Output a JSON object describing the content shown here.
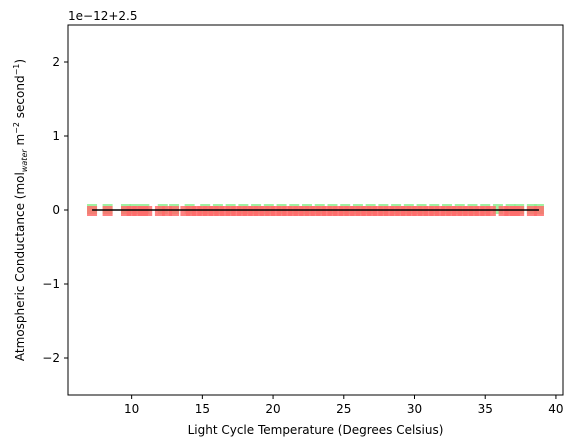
{
  "chart_data": {
    "type": "scatter",
    "offset_text": "1e−12+2.5",
    "xlabel": "Light Cycle Temperature (Degrees Celsius)",
    "ylabel": {
      "prefix": "Atmospheric Conductance (mol",
      "sub": "water",
      "mid": " m",
      "sup1": "−2",
      "mid2": " second",
      "sup2": "−1",
      "suffix": ")"
    },
    "xlim": [
      5.5,
      40.5
    ],
    "ylim": [
      -2.5,
      2.5
    ],
    "xticks": [
      10,
      15,
      20,
      25,
      30,
      35,
      40
    ],
    "yticks": [
      -2,
      -1,
      0,
      1,
      2
    ],
    "ytick_labels": [
      "−2",
      "−1",
      "0",
      "1",
      "2"
    ],
    "grid": false,
    "colors": {
      "series_a": "#ff6b6b",
      "series_b": "#90ee90",
      "fit_line": "#000000"
    },
    "series": [
      {
        "marker": "square",
        "color": "#ff6b6b",
        "x": [
          7.2,
          8.3,
          9.6,
          10.0,
          10.4,
          10.8,
          11.1,
          12.0,
          12.5,
          13.0,
          13.8,
          14.2,
          14.6,
          15.0,
          15.4,
          15.8,
          16.2,
          16.6,
          17.0,
          17.4,
          17.8,
          18.2,
          18.6,
          19.0,
          19.4,
          19.8,
          20.2,
          20.6,
          21.0,
          21.4,
          21.8,
          22.2,
          22.6,
          23.0,
          23.4,
          23.8,
          24.2,
          24.6,
          25.0,
          25.4,
          25.8,
          26.2,
          26.6,
          27.0,
          27.4,
          27.8,
          28.2,
          28.6,
          29.0,
          29.4,
          29.8,
          30.2,
          30.6,
          31.0,
          31.4,
          31.8,
          32.2,
          32.6,
          33.0,
          33.4,
          33.8,
          34.2,
          34.6,
          35.0,
          35.4,
          36.3,
          36.7,
          37.1,
          37.4,
          38.3,
          38.8
        ],
        "y": 0
      },
      {
        "marker": "square",
        "color": "#90ee90",
        "x": [
          7.2,
          8.3,
          9.6,
          10.2,
          10.9,
          12.2,
          13.0,
          14.1,
          15.2,
          16.1,
          17.0,
          17.9,
          18.8,
          19.7,
          20.6,
          21.5,
          22.4,
          23.3,
          24.2,
          25.1,
          26.0,
          26.9,
          27.8,
          28.7,
          29.6,
          30.5,
          31.4,
          32.3,
          33.2,
          34.1,
          35.0,
          35.9,
          36.8,
          37.4,
          38.3,
          38.8
        ],
        "y": 0
      }
    ],
    "fit_line": {
      "x": [
        7.2,
        38.8
      ],
      "y": [
        0,
        0
      ]
    }
  }
}
